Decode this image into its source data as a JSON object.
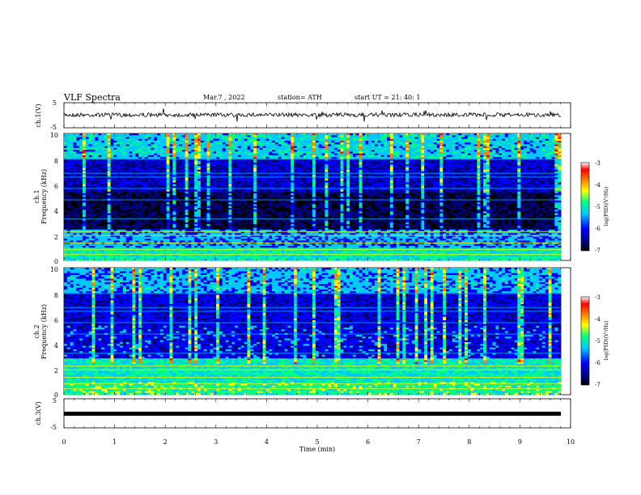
{
  "header": {
    "title": "VLF  Spectra",
    "date": "Mar.7  , 2022",
    "station": "station= ATH",
    "start_ut": "start  UT  =    21: 40: 1"
  },
  "colors": {
    "colormap": [
      "#000000",
      "#000080",
      "#0000ff",
      "#00c8ff",
      "#00ff80",
      "#ffff00",
      "#ff8000",
      "#ff0000",
      "#ffffff"
    ],
    "trace": "#000000"
  },
  "chart_data": [
    {
      "type": "line",
      "panel": "ch1-waveform",
      "ylabel": "ch.1(V)",
      "ylim": [
        -5,
        5
      ],
      "yticks": [
        "5",
        "-5"
      ],
      "description_level": 0,
      "x_range_min": [
        0,
        9.83
      ]
    },
    {
      "type": "heatmap",
      "panel": "ch1-spectrogram",
      "ylabel_top": "ch.1",
      "ylabel": "Frequency  (kHz)",
      "ylim": [
        0,
        10
      ],
      "yticks": [
        "0",
        "2",
        "4",
        "6",
        "8",
        "10"
      ],
      "x_range_min": [
        0,
        9.83
      ],
      "colorbar": {
        "label": "log(PSD)(V²/Hz)",
        "range": [
          -7,
          -3
        ],
        "ticks": [
          "-3",
          "-4",
          "-5",
          "-6",
          "-7"
        ]
      }
    },
    {
      "type": "heatmap",
      "panel": "ch2-spectrogram",
      "ylabel_top": "ch.2",
      "ylabel": "Frequency  (kHz)",
      "ylim": [
        0,
        10
      ],
      "yticks": [
        "0",
        "2",
        "4",
        "6",
        "8",
        "10"
      ],
      "x_range_min": [
        0,
        9.83
      ],
      "colorbar": {
        "label": "log(PSD)(V²/Hz)",
        "range": [
          -7,
          -3
        ],
        "ticks": [
          "-3",
          "-4",
          "-5",
          "-6",
          "-7"
        ]
      }
    },
    {
      "type": "line",
      "panel": "ch3-waveform",
      "ylabel": "ch.3(V)",
      "ylim": [
        -5,
        5
      ],
      "yticks": [
        "5",
        "-5"
      ],
      "level": 0,
      "x_range_min": [
        0,
        9.83
      ]
    }
  ],
  "xaxis": {
    "label": "Time  (min)",
    "xlim": [
      0,
      10
    ],
    "ticks": [
      "0",
      "1",
      "2",
      "3",
      "4",
      "5",
      "6",
      "7",
      "8",
      "9",
      "10"
    ]
  }
}
